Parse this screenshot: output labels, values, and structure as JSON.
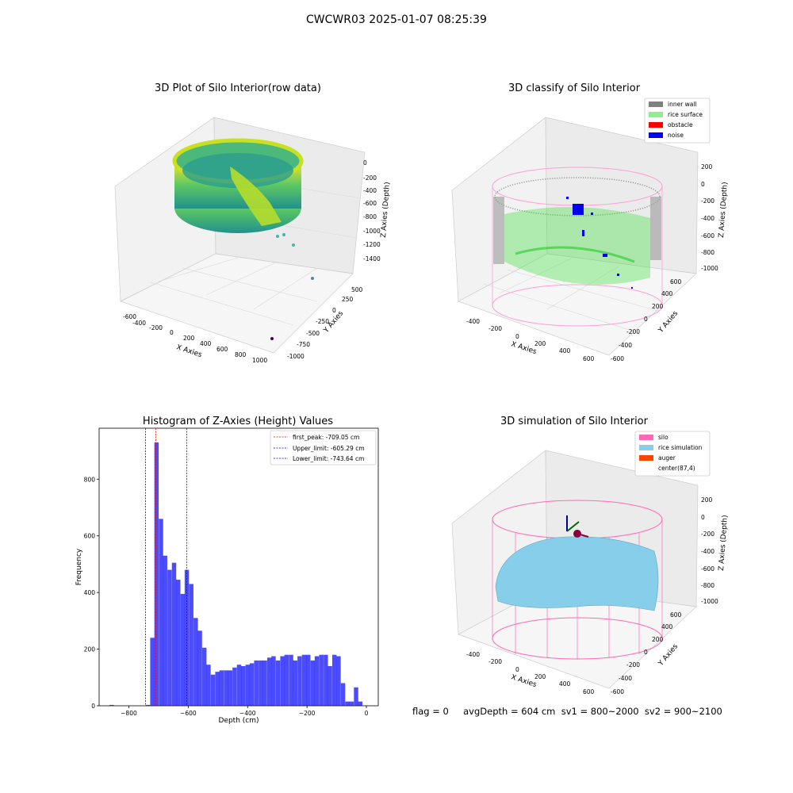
{
  "suptitle": "CWCWR03 2025-01-07 08:25:39",
  "panels": {
    "raw": {
      "title": "3D Plot of Silo Interior(row data)",
      "xlabel": "X Axies",
      "ylabel": "Y Axies",
      "zlabel": "Z Axies (Depth)",
      "xticks": [
        "-600",
        "-400",
        "-200",
        "0",
        "200",
        "400",
        "600",
        "800",
        "1000"
      ],
      "yticks": [
        "500",
        "250",
        "0",
        "-250",
        "-500",
        "-750",
        "-1000"
      ],
      "zticks": [
        "0",
        "-200",
        "-400",
        "-600",
        "-800",
        "-1000",
        "-1200",
        "-1400"
      ]
    },
    "classify": {
      "title": "3D classify of Silo Interior",
      "xlabel": "X Axies",
      "ylabel": "Y Axies",
      "zlabel": "Z Axies (Depth)",
      "xticks": [
        "-400",
        "-200",
        "0",
        "200",
        "400",
        "600"
      ],
      "yticks": [
        "600",
        "400",
        "200",
        "0",
        "-200",
        "-400",
        "-600"
      ],
      "zticks": [
        "200",
        "0",
        "-200",
        "-400",
        "-600",
        "-800",
        "-1000"
      ],
      "legend": [
        {
          "label": "inner wall",
          "color": "#808080"
        },
        {
          "label": "rice surface",
          "color": "#90ee90"
        },
        {
          "label": "obstacle",
          "color": "#ff0000"
        },
        {
          "label": "noise",
          "color": "#0000ff"
        }
      ]
    },
    "simulation": {
      "title": "3D simulation of Silo Interior",
      "xlabel": "X Axies",
      "ylabel": "Y Axies",
      "zlabel": "Z Axies (Depth)",
      "xticks": [
        "-400",
        "-200",
        "0",
        "200",
        "400",
        "600"
      ],
      "yticks": [
        "600",
        "400",
        "200",
        "0",
        "-200",
        "-400",
        "-600"
      ],
      "zticks": [
        "200",
        "0",
        "-200",
        "-400",
        "-600",
        "-800",
        "-1000"
      ],
      "legend": [
        {
          "label": "silo",
          "color": "#ff69b4"
        },
        {
          "label": "rice simulation",
          "color": "#87ceeb"
        },
        {
          "label": "auger",
          "color": "#ff4500"
        },
        {
          "label": "center(87,4)",
          "color": "#ffffff"
        }
      ]
    }
  },
  "info_line": "flag = 0     avgDepth = 604 cm  sv1 = 800~2000  sv2 = 900~2100",
  "chart_data": [
    {
      "type": "bar",
      "title": "Histogram of Z-Axies (Height) Values",
      "xlabel": "Depth (cm)",
      "ylabel": "Frequency",
      "xlim": [
        -900,
        40
      ],
      "ylim": [
        0,
        980
      ],
      "xticks": [
        -800,
        -600,
        -400,
        -200,
        0
      ],
      "yticks": [
        0,
        200,
        400,
        600,
        800
      ],
      "bin_width": 14.6,
      "bin_starts": [
        -865,
        -743,
        -728,
        -714,
        -699,
        -685,
        -670,
        -655,
        -641,
        -626,
        -612,
        -597,
        -582,
        -568,
        -553,
        -539,
        -524,
        -509,
        -495,
        -480,
        -466,
        -451,
        -436,
        -422,
        -407,
        -393,
        -378,
        -363,
        -349,
        -334,
        -320,
        -305,
        -290,
        -276,
        -261,
        -247,
        -232,
        -217,
        -203,
        -188,
        -174,
        -159,
        -144,
        -130,
        -115,
        -101,
        -86,
        -71,
        -57,
        -42,
        -28,
        -13
      ],
      "values": [
        3,
        3,
        240,
        930,
        660,
        530,
        480,
        505,
        445,
        395,
        480,
        430,
        310,
        265,
        205,
        145,
        110,
        120,
        125,
        125,
        125,
        135,
        145,
        140,
        145,
        150,
        160,
        160,
        160,
        170,
        175,
        160,
        175,
        180,
        180,
        160,
        175,
        180,
        180,
        160,
        175,
        180,
        180,
        140,
        180,
        175,
        80,
        15,
        15,
        65,
        15,
        0
      ],
      "reference_lines": [
        {
          "name": "first_peak: -709.05 cm",
          "x": -709.05,
          "color": "#ff0000"
        },
        {
          "name": "Upper_limit: -605.29 cm",
          "x": -605.29,
          "color": "#0000ff"
        },
        {
          "name": "Lower_limit: -743.64 cm",
          "x": -743.64,
          "color": "#0000ff"
        }
      ],
      "bar_color": "#0000ff"
    }
  ]
}
